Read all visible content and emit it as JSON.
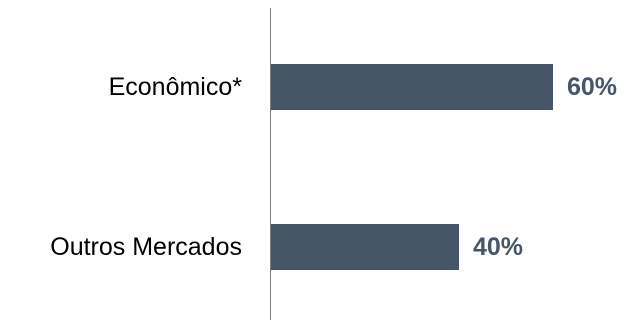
{
  "chart_data": {
    "type": "bar",
    "orientation": "horizontal",
    "categories": [
      "Econômico*",
      "Outros Mercados"
    ],
    "values": [
      60,
      40
    ],
    "value_labels": [
      "60%",
      "40%"
    ],
    "xlim": [
      0,
      100
    ],
    "grid": false,
    "legend": "none",
    "bar_color": "#475569",
    "value_label_color": "#475569",
    "axis_color": "#7f7f7f"
  }
}
